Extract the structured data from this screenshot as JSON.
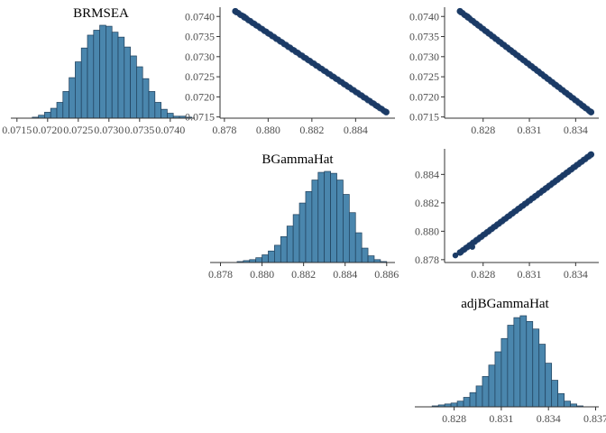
{
  "colors": {
    "hist_fill": "#4a86ad",
    "hist_stroke": "#1f3f5a",
    "point": "#1b3b66",
    "axis": "#333333",
    "text": "#4d4d4d"
  },
  "chart_data": [
    {
      "id": "hist-brmsea",
      "type": "bar",
      "title": "BRMSEA",
      "xlabel": "",
      "ylabel": "",
      "xlim": [
        0.0714,
        0.0744
      ],
      "x_ticks": [
        0.0715,
        0.072,
        0.0725,
        0.073,
        0.0735,
        0.074
      ],
      "x_tick_labels": [
        "0.0715",
        "0.0720",
        "0.0725",
        "0.0730",
        "0.0735",
        "0.0740"
      ],
      "bin_start": 0.07175,
      "bin_width": 0.0001,
      "values": [
        1,
        3,
        6,
        10,
        16,
        27,
        41,
        57,
        71,
        84,
        89,
        94,
        93,
        87,
        82,
        72,
        63,
        52,
        40,
        27,
        16,
        9,
        5,
        2,
        2,
        1
      ]
    },
    {
      "id": "scatter-brmsea-bgammahat",
      "type": "scatter",
      "xlim": [
        0.8778,
        0.8858
      ],
      "ylim": [
        0.07147,
        0.07423
      ],
      "x_ticks": [
        0.878,
        0.88,
        0.882,
        0.884
      ],
      "x_tick_labels": [
        "0.878",
        "0.880",
        "0.882",
        "0.884"
      ],
      "y_ticks": [
        0.0715,
        0.072,
        0.0725,
        0.073,
        0.0735,
        0.074
      ],
      "y_tick_labels": [
        "0.0715",
        "0.0720",
        "0.0725",
        "0.0730",
        "0.0735",
        "0.0740"
      ],
      "line_from": [
        0.8785,
        0.07413
      ],
      "line_to": [
        0.8854,
        0.07162
      ],
      "extra_points": [
        [
          0.8789,
          0.074
        ],
        [
          0.885,
          0.07176
        ]
      ]
    },
    {
      "id": "scatter-brmsea-adjbgammahat",
      "type": "scatter",
      "xlim": [
        0.8255,
        0.8355
      ],
      "ylim": [
        0.07147,
        0.07423
      ],
      "x_ticks": [
        0.828,
        0.831,
        0.834
      ],
      "x_tick_labels": [
        "0.828",
        "0.831",
        "0.834"
      ],
      "y_ticks": [
        0.0715,
        0.072,
        0.0725,
        0.073,
        0.0735,
        0.074
      ],
      "y_tick_labels": [
        "0.0715",
        "0.0720",
        "0.0725",
        "0.0730",
        "0.0735",
        "0.0740"
      ],
      "line_from": [
        0.8265,
        0.07413
      ],
      "line_to": [
        0.835,
        0.07162
      ],
      "extra_points": [
        [
          0.827,
          0.074
        ],
        [
          0.8345,
          0.07176
        ]
      ]
    },
    {
      "id": "hist-bgammahat",
      "type": "bar",
      "title": "BGammaHat",
      "xlabel": "",
      "ylabel": "",
      "xlim": [
        0.8775,
        0.8864
      ],
      "x_ticks": [
        0.878,
        0.88,
        0.882,
        0.884,
        0.886
      ],
      "x_tick_labels": [
        "0.878",
        "0.880",
        "0.882",
        "0.884",
        "0.886"
      ],
      "bin_start": 0.8788,
      "bin_width": 0.0003,
      "values": [
        1,
        2,
        3,
        5,
        8,
        12,
        18,
        27,
        38,
        50,
        62,
        74,
        86,
        94,
        95,
        93,
        86,
        71,
        52,
        31,
        15,
        7,
        3,
        1
      ]
    },
    {
      "id": "scatter-bgammahat-adjbgammahat",
      "type": "scatter",
      "xlim": [
        0.8255,
        0.8355
      ],
      "ylim": [
        0.8778,
        0.8858
      ],
      "x_ticks": [
        0.828,
        0.831,
        0.834
      ],
      "x_tick_labels": [
        "0.828",
        "0.831",
        "0.834"
      ],
      "y_ticks": [
        0.878,
        0.88,
        0.882,
        0.884
      ],
      "y_tick_labels": [
        "0.878",
        "0.880",
        "0.882",
        "0.884"
      ],
      "line_from": [
        0.8265,
        0.8785
      ],
      "line_to": [
        0.835,
        0.8854
      ],
      "extra_points": [
        [
          0.8262,
          0.8783
        ],
        [
          0.8273,
          0.8789
        ]
      ]
    },
    {
      "id": "hist-adjbgammahat",
      "type": "bar",
      "title": "adjBGammaHat",
      "xlabel": "",
      "ylabel": "",
      "xlim": [
        0.8255,
        0.8372
      ],
      "x_ticks": [
        0.828,
        0.831,
        0.834,
        0.837
      ],
      "x_tick_labels": [
        "0.828",
        "0.831",
        "0.834",
        "0.837"
      ],
      "bin_start": 0.8266,
      "bin_width": 0.0004,
      "values": [
        1,
        2,
        3,
        4,
        6,
        10,
        15,
        22,
        32,
        44,
        58,
        72,
        86,
        94,
        96,
        90,
        82,
        66,
        46,
        28,
        14,
        6,
        3,
        1
      ]
    }
  ]
}
